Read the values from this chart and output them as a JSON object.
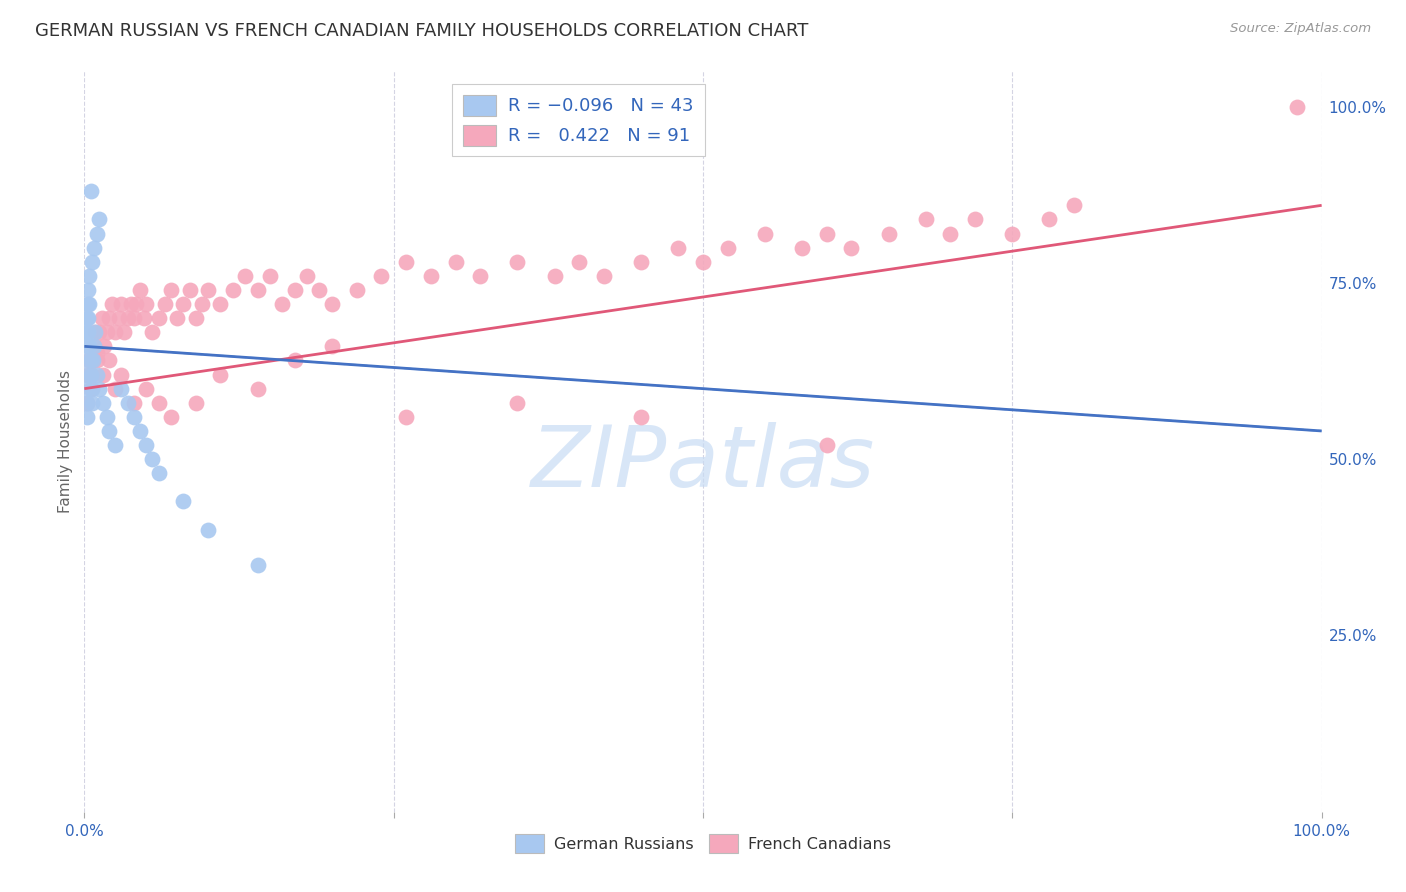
{
  "title": "GERMAN RUSSIAN VS FRENCH CANADIAN FAMILY HOUSEHOLDS CORRELATION CHART",
  "source": "Source: ZipAtlas.com",
  "ylabel": "Family Households",
  "right_yticks": [
    "100.0%",
    "75.0%",
    "50.0%",
    "25.0%"
  ],
  "right_ytick_vals": [
    1.0,
    0.75,
    0.5,
    0.25
  ],
  "blue_color": "#A8C8F0",
  "pink_color": "#F5A8BC",
  "blue_line_color": "#4472C4",
  "pink_line_color": "#E05878",
  "dashed_line_color": "#A8C8F0",
  "grid_color": "#D0D0E0",
  "background_color": "#FFFFFF",
  "watermark_text": "ZIPatlas",
  "watermark_color": "#C8DCF4",
  "blue_scatter_x": [
    0.005,
    0.012,
    0.01,
    0.008,
    0.006,
    0.004,
    0.003,
    0.003,
    0.002,
    0.002,
    0.002,
    0.002,
    0.002,
    0.002,
    0.002,
    0.002,
    0.003,
    0.003,
    0.004,
    0.004,
    0.005,
    0.005,
    0.006,
    0.006,
    0.007,
    0.008,
    0.009,
    0.01,
    0.012,
    0.015,
    0.018,
    0.02,
    0.025,
    0.03,
    0.035,
    0.04,
    0.045,
    0.05,
    0.055,
    0.06,
    0.08,
    0.1,
    0.14
  ],
  "blue_scatter_y": [
    0.88,
    0.84,
    0.82,
    0.8,
    0.78,
    0.76,
    0.74,
    0.72,
    0.7,
    0.68,
    0.66,
    0.64,
    0.62,
    0.6,
    0.58,
    0.56,
    0.68,
    0.7,
    0.72,
    0.66,
    0.64,
    0.62,
    0.6,
    0.58,
    0.64,
    0.66,
    0.68,
    0.62,
    0.6,
    0.58,
    0.56,
    0.54,
    0.52,
    0.6,
    0.58,
    0.56,
    0.54,
    0.52,
    0.5,
    0.48,
    0.44,
    0.4,
    0.35
  ],
  "pink_scatter_x": [
    0.003,
    0.004,
    0.005,
    0.006,
    0.007,
    0.008,
    0.009,
    0.01,
    0.012,
    0.014,
    0.016,
    0.018,
    0.02,
    0.022,
    0.025,
    0.028,
    0.03,
    0.032,
    0.035,
    0.038,
    0.04,
    0.042,
    0.045,
    0.048,
    0.05,
    0.055,
    0.06,
    0.065,
    0.07,
    0.075,
    0.08,
    0.085,
    0.09,
    0.095,
    0.1,
    0.11,
    0.12,
    0.13,
    0.14,
    0.15,
    0.16,
    0.17,
    0.18,
    0.19,
    0.2,
    0.22,
    0.24,
    0.26,
    0.28,
    0.3,
    0.32,
    0.35,
    0.38,
    0.4,
    0.42,
    0.45,
    0.48,
    0.5,
    0.52,
    0.55,
    0.58,
    0.6,
    0.62,
    0.65,
    0.68,
    0.7,
    0.72,
    0.75,
    0.78,
    0.8,
    0.002,
    0.005,
    0.01,
    0.015,
    0.02,
    0.025,
    0.03,
    0.04,
    0.05,
    0.06,
    0.07,
    0.09,
    0.11,
    0.14,
    0.17,
    0.2,
    0.26,
    0.35,
    0.45,
    0.6,
    0.98
  ],
  "pink_scatter_y": [
    0.62,
    0.64,
    0.6,
    0.62,
    0.64,
    0.66,
    0.68,
    0.65,
    0.68,
    0.7,
    0.66,
    0.68,
    0.7,
    0.72,
    0.68,
    0.7,
    0.72,
    0.68,
    0.7,
    0.72,
    0.7,
    0.72,
    0.74,
    0.7,
    0.72,
    0.68,
    0.7,
    0.72,
    0.74,
    0.7,
    0.72,
    0.74,
    0.7,
    0.72,
    0.74,
    0.72,
    0.74,
    0.76,
    0.74,
    0.76,
    0.72,
    0.74,
    0.76,
    0.74,
    0.72,
    0.74,
    0.76,
    0.78,
    0.76,
    0.78,
    0.76,
    0.78,
    0.76,
    0.78,
    0.76,
    0.78,
    0.8,
    0.78,
    0.8,
    0.82,
    0.8,
    0.82,
    0.8,
    0.82,
    0.84,
    0.82,
    0.84,
    0.82,
    0.84,
    0.86,
    0.58,
    0.62,
    0.64,
    0.62,
    0.64,
    0.6,
    0.62,
    0.58,
    0.6,
    0.58,
    0.56,
    0.58,
    0.62,
    0.6,
    0.64,
    0.66,
    0.56,
    0.58,
    0.56,
    0.52,
    1.0
  ],
  "blue_trend_x": [
    0.0,
    1.0
  ],
  "blue_trend_y": [
    0.66,
    0.54
  ],
  "pink_trend_x": [
    0.0,
    1.0
  ],
  "pink_trend_y": [
    0.6,
    0.86
  ],
  "xlim": [
    0.0,
    1.0
  ],
  "ylim": [
    0.0,
    1.05
  ],
  "xtick_positions": [
    0.0,
    0.25,
    0.5,
    0.75,
    1.0
  ],
  "xtick_labels": [
    "0.0%",
    "",
    "",
    "",
    "100.0%"
  ]
}
